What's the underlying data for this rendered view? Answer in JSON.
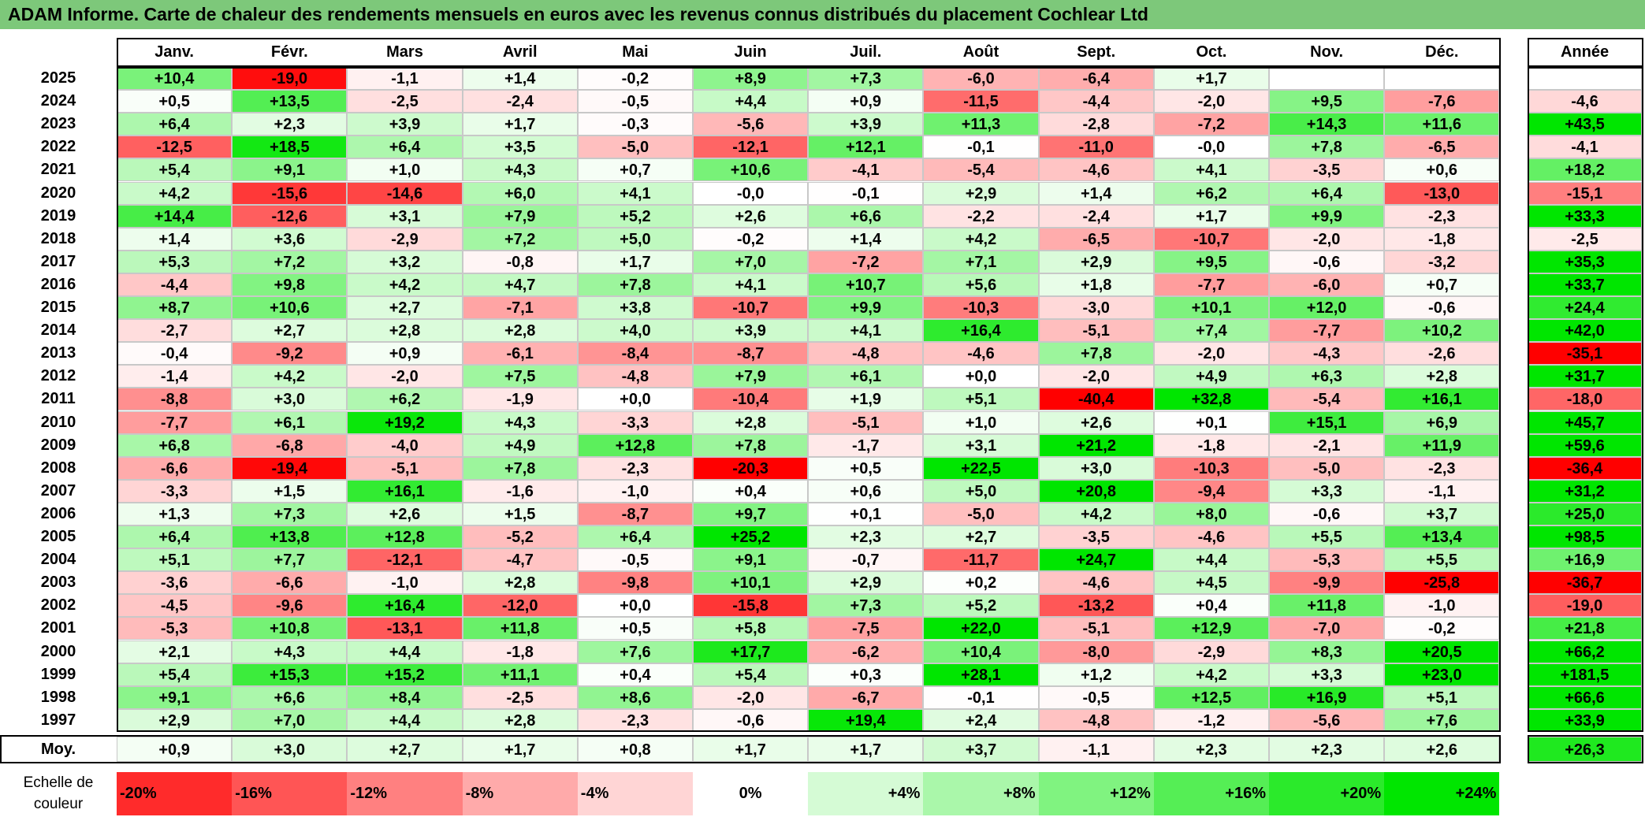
{
  "title": "ADAM Informe. Carte de chaleur des rendements mensuels en euros avec les revenus connus distribués du placement Cochlear Ltd",
  "chart_data": {
    "type": "heatmap",
    "title": "ADAM Informe. Carte de chaleur des rendements mensuels en euros avec les revenus connus distribués du placement Cochlear Ltd",
    "months": [
      "Janv.",
      "Févr.",
      "Mars",
      "Avril",
      "Mai",
      "Juin",
      "Juil.",
      "Août",
      "Sept.",
      "Oct.",
      "Nov.",
      "Déc."
    ],
    "annual_header": "Année",
    "rows": [
      {
        "year": "2025",
        "values": [
          "+10,4",
          "-19,0",
          "-1,1",
          "+1,4",
          "-0,2",
          "+8,9",
          "+7,3",
          "-6,0",
          "-6,4",
          "+1,7",
          "",
          ""
        ],
        "annual": ""
      },
      {
        "year": "2024",
        "values": [
          "+0,5",
          "+13,5",
          "-2,5",
          "-2,4",
          "-0,5",
          "+4,4",
          "+0,9",
          "-11,5",
          "-4,4",
          "-2,0",
          "+9,5",
          "-7,6"
        ],
        "annual": "-4,6"
      },
      {
        "year": "2023",
        "values": [
          "+6,4",
          "+2,3",
          "+3,9",
          "+1,7",
          "-0,3",
          "-5,6",
          "+3,9",
          "+11,3",
          "-2,8",
          "-7,2",
          "+14,3",
          "+11,6"
        ],
        "annual": "+43,5"
      },
      {
        "year": "2022",
        "values": [
          "-12,5",
          "+18,5",
          "+6,4",
          "+3,5",
          "-5,0",
          "-12,1",
          "+12,1",
          "-0,1",
          "-11,0",
          "-0,0",
          "+7,8",
          "-6,5"
        ],
        "annual": "-4,1"
      },
      {
        "year": "2021",
        "values": [
          "+5,4",
          "+9,1",
          "+1,0",
          "+4,3",
          "+0,7",
          "+10,6",
          "-4,1",
          "-5,4",
          "-4,6",
          "+4,1",
          "-3,5",
          "+0,6"
        ],
        "annual": "+18,2"
      },
      {
        "year": "2020",
        "values": [
          "+4,2",
          "-15,6",
          "-14,6",
          "+6,0",
          "+4,1",
          "-0,0",
          "-0,1",
          "+2,9",
          "+1,4",
          "+6,2",
          "+6,4",
          "-13,0"
        ],
        "annual": "-15,1"
      },
      {
        "year": "2019",
        "values": [
          "+14,4",
          "-12,6",
          "+3,1",
          "+7,9",
          "+5,2",
          "+2,6",
          "+6,6",
          "-2,2",
          "-2,4",
          "+1,7",
          "+9,9",
          "-2,3"
        ],
        "annual": "+33,3"
      },
      {
        "year": "2018",
        "values": [
          "+1,4",
          "+3,6",
          "-2,9",
          "+7,2",
          "+5,0",
          "-0,2",
          "+1,4",
          "+4,2",
          "-6,5",
          "-10,7",
          "-2,0",
          "-1,8"
        ],
        "annual": "-2,5"
      },
      {
        "year": "2017",
        "values": [
          "+5,3",
          "+7,2",
          "+3,2",
          "-0,8",
          "+1,7",
          "+7,0",
          "-7,2",
          "+7,1",
          "+2,9",
          "+9,5",
          "-0,6",
          "-3,2"
        ],
        "annual": "+35,3"
      },
      {
        "year": "2016",
        "values": [
          "-4,4",
          "+9,8",
          "+4,2",
          "+4,7",
          "+7,8",
          "+4,1",
          "+10,7",
          "+5,6",
          "+1,8",
          "-7,7",
          "-6,0",
          "+0,7"
        ],
        "annual": "+33,7"
      },
      {
        "year": "2015",
        "values": [
          "+8,7",
          "+10,6",
          "+2,7",
          "-7,1",
          "+3,8",
          "-10,7",
          "+9,9",
          "-10,3",
          "-3,0",
          "+10,1",
          "+12,0",
          "-0,6"
        ],
        "annual": "+24,4"
      },
      {
        "year": "2014",
        "values": [
          "-2,7",
          "+2,7",
          "+2,8",
          "+2,8",
          "+4,0",
          "+3,9",
          "+4,1",
          "+16,4",
          "-5,1",
          "+7,4",
          "-7,7",
          "+10,2"
        ],
        "annual": "+42,0"
      },
      {
        "year": "2013",
        "values": [
          "-0,4",
          "-9,2",
          "+0,9",
          "-6,1",
          "-8,4",
          "-8,7",
          "-4,8",
          "-4,6",
          "+7,8",
          "-2,0",
          "-4,3",
          "-2,6"
        ],
        "annual": "-35,1"
      },
      {
        "year": "2012",
        "values": [
          "-1,4",
          "+4,2",
          "-2,0",
          "+7,5",
          "-4,8",
          "+7,9",
          "+6,1",
          "+0,0",
          "-2,0",
          "+4,9",
          "+6,3",
          "+2,8"
        ],
        "annual": "+31,7"
      },
      {
        "year": "2011",
        "values": [
          "-8,8",
          "+3,0",
          "+6,2",
          "-1,9",
          "+0,0",
          "-10,4",
          "+1,9",
          "+5,1",
          "-40,4",
          "+32,8",
          "-5,4",
          "+16,1"
        ],
        "annual": "-18,0"
      },
      {
        "year": "2010",
        "values": [
          "-7,7",
          "+6,1",
          "+19,2",
          "+4,3",
          "-3,3",
          "+2,8",
          "-5,1",
          "+1,0",
          "+2,6",
          "+0,1",
          "+15,1",
          "+6,9"
        ],
        "annual": "+45,7"
      },
      {
        "year": "2009",
        "values": [
          "+6,8",
          "-6,8",
          "-4,0",
          "+4,9",
          "+12,8",
          "+7,8",
          "-1,7",
          "+3,1",
          "+21,2",
          "-1,8",
          "-2,1",
          "+11,9"
        ],
        "annual": "+59,6"
      },
      {
        "year": "2008",
        "values": [
          "-6,6",
          "-19,4",
          "-5,1",
          "+7,8",
          "-2,3",
          "-20,3",
          "+0,5",
          "+22,5",
          "+3,0",
          "-10,3",
          "-5,0",
          "-2,3"
        ],
        "annual": "-36,4"
      },
      {
        "year": "2007",
        "values": [
          "-3,3",
          "+1,5",
          "+16,1",
          "-1,6",
          "-1,0",
          "+0,4",
          "+0,6",
          "+5,0",
          "+20,8",
          "-9,4",
          "+3,3",
          "-1,1"
        ],
        "annual": "+31,2"
      },
      {
        "year": "2006",
        "values": [
          "+1,3",
          "+7,3",
          "+2,6",
          "+1,5",
          "-8,7",
          "+9,7",
          "+0,1",
          "-5,0",
          "+4,2",
          "+8,0",
          "-0,6",
          "+3,7"
        ],
        "annual": "+25,0"
      },
      {
        "year": "2005",
        "values": [
          "+6,4",
          "+13,8",
          "+12,8",
          "-5,2",
          "+6,4",
          "+25,2",
          "+2,3",
          "+2,7",
          "-3,5",
          "-4,6",
          "+5,5",
          "+13,4"
        ],
        "annual": "+98,5"
      },
      {
        "year": "2004",
        "values": [
          "+5,1",
          "+7,7",
          "-12,1",
          "-4,7",
          "-0,5",
          "+9,1",
          "-0,7",
          "-11,7",
          "+24,7",
          "+4,4",
          "-5,3",
          "+5,5"
        ],
        "annual": "+16,9"
      },
      {
        "year": "2003",
        "values": [
          "-3,6",
          "-6,6",
          "-1,0",
          "+2,8",
          "-9,8",
          "+10,1",
          "+2,9",
          "+0,2",
          "-4,6",
          "+4,5",
          "-9,9",
          "-25,8"
        ],
        "annual": "-36,7"
      },
      {
        "year": "2002",
        "values": [
          "-4,5",
          "-9,6",
          "+16,4",
          "-12,0",
          "+0,0",
          "-15,8",
          "+7,3",
          "+5,2",
          "-13,2",
          "+0,4",
          "+11,8",
          "-1,0"
        ],
        "annual": "-19,0"
      },
      {
        "year": "2001",
        "values": [
          "-5,3",
          "+10,8",
          "-13,1",
          "+11,8",
          "+0,5",
          "+5,8",
          "-7,5",
          "+22,0",
          "-5,1",
          "+12,9",
          "-7,0",
          "-0,2"
        ],
        "annual": "+21,8"
      },
      {
        "year": "2000",
        "values": [
          "+2,1",
          "+4,3",
          "+4,4",
          "-1,8",
          "+7,6",
          "+17,7",
          "-6,2",
          "+10,4",
          "-8,0",
          "-2,9",
          "+8,3",
          "+20,5"
        ],
        "annual": "+66,2"
      },
      {
        "year": "1999",
        "values": [
          "+5,4",
          "+15,3",
          "+15,2",
          "+11,1",
          "+0,4",
          "+5,4",
          "+0,3",
          "+28,1",
          "+1,2",
          "+4,2",
          "+3,3",
          "+23,0"
        ],
        "annual": "+181,5"
      },
      {
        "year": "1998",
        "values": [
          "+9,1",
          "+6,6",
          "+8,4",
          "-2,5",
          "+8,6",
          "-2,0",
          "-6,7",
          "-0,1",
          "-0,5",
          "+12,5",
          "+16,9",
          "+5,1"
        ],
        "annual": "+66,6"
      },
      {
        "year": "1997",
        "values": [
          "+2,9",
          "+7,0",
          "+4,4",
          "+2,8",
          "-2,3",
          "-0,6",
          "+19,4",
          "+2,4",
          "-4,8",
          "-1,2",
          "-5,6",
          "+7,6"
        ],
        "annual": "+33,9"
      }
    ],
    "average": {
      "label": "Moy.",
      "values": [
        "+0,9",
        "+3,0",
        "+2,7",
        "+1,7",
        "+0,8",
        "+1,7",
        "+1,7",
        "+3,7",
        "-1,1",
        "+2,3",
        "+2,3",
        "+2,6"
      ],
      "annual": "+26,3"
    },
    "legend": {
      "label": "Echelle de couleur",
      "entries": [
        {
          "text": "-20%",
          "value": -20
        },
        {
          "text": "-16%",
          "value": -16
        },
        {
          "text": "-12%",
          "value": -12
        },
        {
          "text": "-8%",
          "value": -8
        },
        {
          "text": "-4%",
          "value": -4
        },
        {
          "text": "0%",
          "value": 0
        },
        {
          "text": "+4%",
          "value": 4
        },
        {
          "text": "+8%",
          "value": 8
        },
        {
          "text": "+12%",
          "value": 12
        },
        {
          "text": "+16%",
          "value": 16
        },
        {
          "text": "+20%",
          "value": 20
        },
        {
          "text": "+24%",
          "value": 24
        }
      ]
    },
    "colors": {
      "negative_max": "#ff0000",
      "neutral": "#ffffff",
      "positive_max": "#00e000",
      "title_bar": "#7dc87a"
    }
  }
}
